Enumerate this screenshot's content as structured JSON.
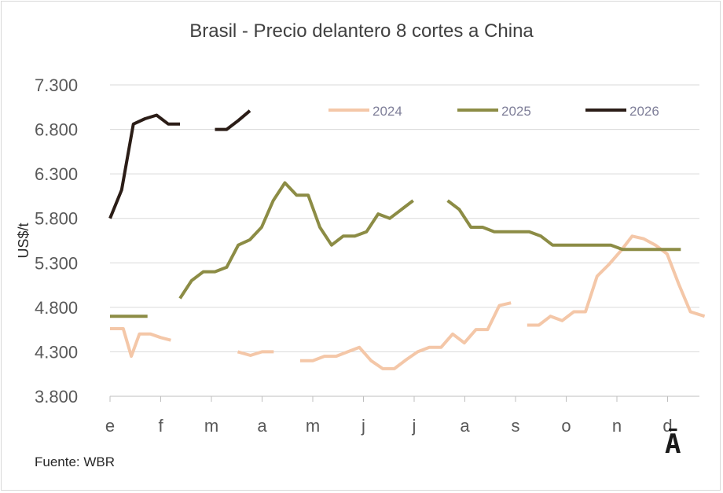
{
  "chart_data": {
    "type": "line",
    "title": "Brasil - Precio delantero 8 cortes a China",
    "xlabel": "",
    "ylabel": "US$/t",
    "ylim": [
      3800,
      7300
    ],
    "yticks": [
      "3.800",
      "4.300",
      "4.800",
      "5.300",
      "5.800",
      "6.300",
      "6.800",
      "7.300"
    ],
    "ytick_values": [
      3800,
      4300,
      4800,
      5300,
      5800,
      6300,
      6800,
      7300
    ],
    "x_range": [
      0,
      12
    ],
    "categories": [
      "e",
      "f",
      "m",
      "a",
      "m",
      "j",
      "j",
      "a",
      "s",
      "o",
      "n",
      "d"
    ],
    "grid": true,
    "legend_position": "top",
    "series": [
      {
        "name": "2024",
        "color": "#f4c7a8",
        "segments": [
          [
            [
              0.0,
              4560
            ],
            [
              0.26,
              4560
            ],
            [
              0.42,
              4250
            ],
            [
              0.58,
              4500
            ],
            [
              0.8,
              4500
            ],
            [
              1.0,
              4460
            ],
            [
              1.2,
              4430
            ]
          ],
          [
            [
              2.52,
              4300
            ],
            [
              2.77,
              4260
            ],
            [
              3.0,
              4300
            ],
            [
              3.23,
              4300
            ]
          ],
          [
            [
              3.75,
              4200
            ],
            [
              4.0,
              4200
            ],
            [
              4.23,
              4250
            ],
            [
              4.46,
              4250
            ],
            [
              4.69,
              4300
            ],
            [
              4.92,
              4350
            ],
            [
              5.15,
              4200
            ],
            [
              5.38,
              4110
            ],
            [
              5.61,
              4110
            ],
            [
              5.84,
              4210
            ],
            [
              6.07,
              4300
            ],
            [
              6.3,
              4350
            ],
            [
              6.53,
              4350
            ],
            [
              6.76,
              4500
            ],
            [
              6.99,
              4400
            ],
            [
              7.22,
              4550
            ],
            [
              7.45,
              4550
            ],
            [
              7.68,
              4820
            ],
            [
              7.91,
              4850
            ]
          ],
          [
            [
              8.23,
              4600
            ],
            [
              8.46,
              4600
            ],
            [
              8.69,
              4700
            ],
            [
              8.92,
              4650
            ],
            [
              9.15,
              4750
            ],
            [
              9.38,
              4750
            ],
            [
              9.61,
              5150
            ],
            [
              9.84,
              5280
            ],
            [
              10.07,
              5430
            ],
            [
              10.3,
              5600
            ],
            [
              10.53,
              5570
            ],
            [
              10.76,
              5500
            ],
            [
              10.99,
              5400
            ],
            [
              11.22,
              5060
            ],
            [
              11.45,
              4750
            ],
            [
              11.73,
              4700
            ]
          ]
        ]
      },
      {
        "name": "2025",
        "color": "#8c8c45",
        "segments": [
          [
            [
              0.0,
              4700
            ],
            [
              0.74,
              4700
            ]
          ],
          [
            [
              1.38,
              4900
            ],
            [
              1.61,
              5100
            ],
            [
              1.84,
              5200
            ],
            [
              2.07,
              5200
            ],
            [
              2.3,
              5250
            ],
            [
              2.53,
              5500
            ],
            [
              2.76,
              5560
            ],
            [
              2.99,
              5700
            ],
            [
              3.22,
              6000
            ],
            [
              3.45,
              6200
            ],
            [
              3.68,
              6060
            ],
            [
              3.91,
              6060
            ],
            [
              4.14,
              5700
            ],
            [
              4.37,
              5500
            ],
            [
              4.6,
              5600
            ],
            [
              4.83,
              5600
            ],
            [
              5.06,
              5650
            ],
            [
              5.29,
              5850
            ],
            [
              5.52,
              5800
            ],
            [
              5.75,
              5900
            ],
            [
              5.98,
              6000
            ]
          ],
          [
            [
              6.66,
              6000
            ],
            [
              6.89,
              5900
            ],
            [
              7.12,
              5700
            ],
            [
              7.35,
              5700
            ],
            [
              7.58,
              5650
            ],
            [
              7.81,
              5650
            ],
            [
              8.04,
              5650
            ],
            [
              8.27,
              5650
            ],
            [
              8.5,
              5600
            ],
            [
              8.73,
              5500
            ],
            [
              8.96,
              5500
            ],
            [
              9.19,
              5500
            ],
            [
              9.42,
              5500
            ],
            [
              9.65,
              5500
            ],
            [
              9.88,
              5500
            ],
            [
              10.11,
              5450
            ],
            [
              10.34,
              5450
            ],
            [
              10.57,
              5450
            ],
            [
              10.8,
              5450
            ],
            [
              11.03,
              5450
            ],
            [
              11.26,
              5450
            ]
          ]
        ]
      },
      {
        "name": "2026",
        "color": "#2b1d17",
        "segments": [
          [
            [
              0.0,
              5800
            ],
            [
              0.23,
              6120
            ],
            [
              0.46,
              6860
            ],
            [
              0.69,
              6920
            ],
            [
              0.92,
              6960
            ],
            [
              1.15,
              6860
            ],
            [
              1.38,
              6860
            ]
          ],
          [
            [
              2.07,
              6800
            ],
            [
              2.3,
              6800
            ],
            [
              2.53,
              6900
            ],
            [
              2.76,
              7010
            ]
          ]
        ]
      }
    ]
  },
  "source": "Fuente: WBR",
  "logo_text": "Ā"
}
